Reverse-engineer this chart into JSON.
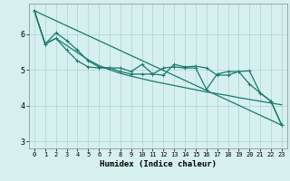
{
  "xlabel": "Humidex (Indice chaleur)",
  "ylabel": "",
  "xlim": [
    -0.5,
    23.5
  ],
  "ylim": [
    2.8,
    6.85
  ],
  "yticks": [
    3,
    4,
    5,
    6
  ],
  "xticks": [
    0,
    1,
    2,
    3,
    4,
    5,
    6,
    7,
    8,
    9,
    10,
    11,
    12,
    13,
    14,
    15,
    16,
    17,
    18,
    19,
    20,
    21,
    22,
    23
  ],
  "background_color": "#d6efef",
  "grid_color": "#aed4d4",
  "line_color": "#1a7a6a",
  "line1_x": [
    0,
    1,
    2,
    3,
    4,
    5,
    6,
    7,
    8,
    9,
    10,
    11,
    12,
    13,
    14,
    15,
    16,
    17,
    18,
    19,
    20,
    21,
    22,
    23
  ],
  "line1_y": [
    6.65,
    5.72,
    6.03,
    5.82,
    5.55,
    5.25,
    5.08,
    5.05,
    5.05,
    4.95,
    5.15,
    4.88,
    4.85,
    5.15,
    5.08,
    5.1,
    5.05,
    4.85,
    4.85,
    4.95,
    4.6,
    4.35,
    4.12,
    3.45
  ],
  "line2_x": [
    0,
    1,
    2,
    3,
    4,
    5,
    6,
    7,
    8,
    9,
    10,
    11,
    12,
    13,
    14,
    15,
    16,
    17,
    18,
    19,
    20,
    21,
    22,
    23
  ],
  "line2_y": [
    6.65,
    5.72,
    5.88,
    5.68,
    5.48,
    5.28,
    5.12,
    5.0,
    4.9,
    4.82,
    4.75,
    4.68,
    4.62,
    4.56,
    4.5,
    4.44,
    4.38,
    4.33,
    4.28,
    4.22,
    4.17,
    4.12,
    4.07,
    4.02
  ],
  "line3_x": [
    0,
    23
  ],
  "line3_y": [
    6.65,
    3.45
  ],
  "line4_x": [
    0,
    1,
    2,
    3,
    4,
    5,
    6,
    7,
    8,
    9,
    10,
    11,
    12,
    13,
    14,
    15,
    16,
    17,
    18,
    19,
    20,
    21,
    22,
    23
  ],
  "line4_y": [
    6.65,
    5.72,
    5.88,
    5.55,
    5.25,
    5.08,
    5.05,
    5.05,
    4.95,
    4.88,
    4.88,
    4.88,
    5.05,
    5.08,
    5.05,
    5.05,
    4.45,
    4.88,
    4.95,
    4.95,
    4.97,
    4.35,
    4.12,
    3.45
  ],
  "linewidth": 0.9,
  "marker_size": 3.5
}
